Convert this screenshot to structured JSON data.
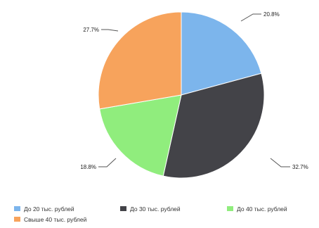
{
  "chart_data": {
    "type": "pie",
    "categories": [
      "До 20 тыс. рублей",
      "До 30 тыс. рублей",
      "До 40 тыс. рублей",
      "Свыше 40 тыс. рублей"
    ],
    "values": [
      20.8,
      32.7,
      18.8,
      27.7
    ],
    "data_labels": [
      "20.8%",
      "32.7%",
      "18.8%",
      "27.7%"
    ],
    "colors": [
      "#7cb5ec",
      "#434348",
      "#90ed7d",
      "#f7a35c"
    ],
    "start_angle_deg": 0,
    "direction": "clockwise",
    "legend_position": "bottom"
  }
}
